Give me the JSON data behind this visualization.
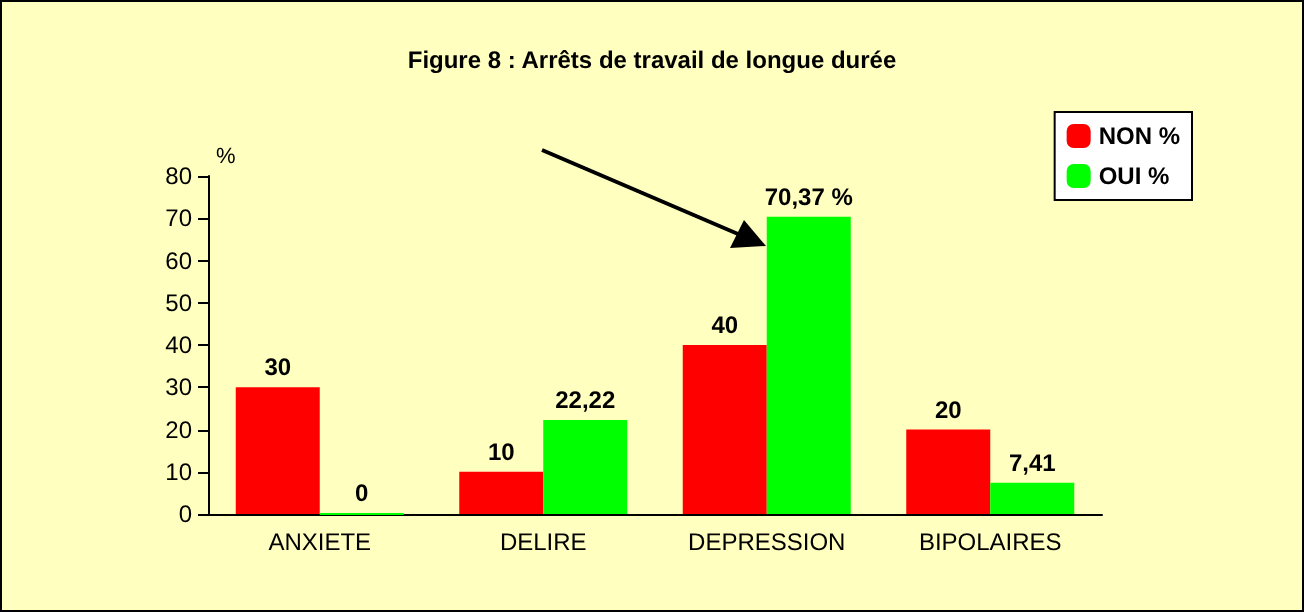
{
  "chart_data": {
    "type": "bar",
    "title": "Figure 8 : Arrêts de travail de longue durée",
    "ylabel": "%",
    "categories": [
      "ANXIETE",
      "DELIRE",
      "DEPRESSION",
      "BIPOLAIRES"
    ],
    "series": [
      {
        "name": "NON %",
        "color": "#ff0000",
        "values": [
          30,
          10,
          40,
          20
        ],
        "value_labels": [
          "30",
          "10",
          "40",
          "20"
        ]
      },
      {
        "name": "OUI %",
        "color": "#00ff00",
        "values": [
          0,
          22.22,
          70.37,
          7.41
        ],
        "value_labels": [
          "0",
          "22,22",
          "70,37 %",
          "7,41"
        ]
      }
    ],
    "ylim": [
      0,
      80
    ],
    "yticks": [
      0,
      10,
      20,
      30,
      40,
      50,
      60,
      70,
      80
    ],
    "grid": false,
    "legend": "top right"
  }
}
